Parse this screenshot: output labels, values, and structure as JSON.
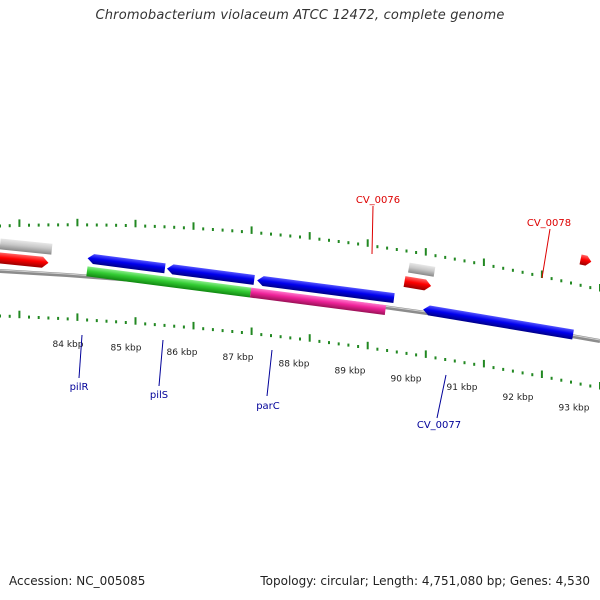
{
  "title": "Chromobacterium violaceum ATCC 12472, complete genome",
  "footer": {
    "accession": "Accession: NC_005085",
    "summary": "Topology: circular; Length: 4,751,080 bp; Genes: 4,530"
  },
  "colors": {
    "forward_cds": "#ff0000",
    "reverse_cds": "#0000ee",
    "gene_green": "#33cc33",
    "gene_magenta": "#ee2299",
    "other": "#c8c8c8",
    "backbone": "#8c8c8c",
    "tick": "#228822",
    "label_red": "#dd0000",
    "label_blue": "#000099"
  },
  "ticks": [
    "84 kbp",
    "85 kbp",
    "86 kbp",
    "87 kbp",
    "88 kbp",
    "89 kbp",
    "90 kbp",
    "91 kbp",
    "92 kbp",
    "93 kbp"
  ],
  "labels": {
    "top": [
      "CV_0076",
      "CV_0078"
    ],
    "bottom": [
      "pilR",
      "pilS",
      "parC",
      "CV_0077"
    ]
  }
}
